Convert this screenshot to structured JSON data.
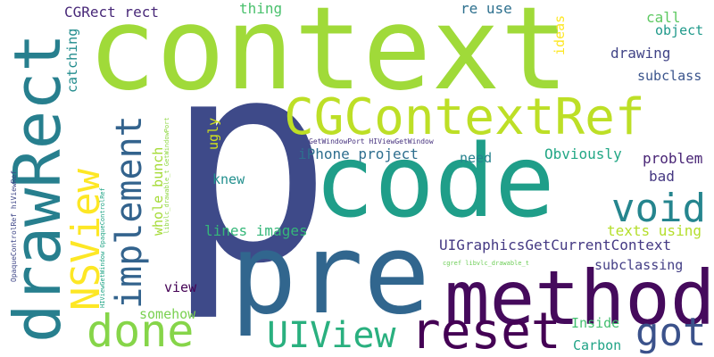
{
  "words": [
    {
      "id": "p",
      "text": "p",
      "color": "#3e4a89"
    },
    {
      "id": "context",
      "text": "context",
      "color": "#a0da39"
    },
    {
      "id": "code",
      "text": "code",
      "color": "#1f9e89"
    },
    {
      "id": "pre",
      "text": "pre",
      "color": "#31668e"
    },
    {
      "id": "method",
      "text": "method",
      "color": "#450a5c"
    },
    {
      "id": "drawRect",
      "text": "drawRect",
      "color": "#277f8e"
    },
    {
      "id": "CGContextRef",
      "text": "CGContextRef",
      "color": "#bddf26"
    },
    {
      "id": "reset",
      "text": "reset",
      "color": "#440154"
    },
    {
      "id": "NSView",
      "text": "NSView",
      "color": "#fde725"
    },
    {
      "id": "done",
      "text": "done",
      "color": "#86d549"
    },
    {
      "id": "UIView",
      "text": "UIView",
      "color": "#2ab07f"
    },
    {
      "id": "void",
      "text": "void",
      "color": "#25858e"
    },
    {
      "id": "implement",
      "text": "implement",
      "color": "#33638d"
    },
    {
      "id": "got",
      "text": "got",
      "color": "#3b528b"
    },
    {
      "id": "CGRect_rect",
      "text": "CGRect rect",
      "color": "#482878"
    },
    {
      "id": "thing",
      "text": "thing",
      "color": "#4ac16d"
    },
    {
      "id": "re_use",
      "text": "re use",
      "color": "#2d708e"
    },
    {
      "id": "ideas",
      "text": "ideas",
      "color": "#fde725"
    },
    {
      "id": "call",
      "text": "call",
      "color": "#5ec962"
    },
    {
      "id": "object",
      "text": "object",
      "color": "#1f998a"
    },
    {
      "id": "catching",
      "text": "catching",
      "color": "#228c8d"
    },
    {
      "id": "drawing",
      "text": "drawing",
      "color": "#414487"
    },
    {
      "id": "subclass",
      "text": "subclass",
      "color": "#3a548c"
    },
    {
      "id": "iPhone_project",
      "text": "iPhone project",
      "color": "#2e6e8e"
    },
    {
      "id": "ugly",
      "text": "ugly",
      "color": "#d0e11c"
    },
    {
      "id": "knew",
      "text": "knew",
      "color": "#218f8d"
    },
    {
      "id": "need",
      "text": "need",
      "color": "#26828e"
    },
    {
      "id": "Obviously",
      "text": "Obviously",
      "color": "#22a785"
    },
    {
      "id": "problem",
      "text": "problem",
      "color": "#482475"
    },
    {
      "id": "bad",
      "text": "bad",
      "color": "#453882"
    },
    {
      "id": "whole_bunch",
      "text": "whole bunch",
      "color": "#a5db36"
    },
    {
      "id": "lines_images",
      "text": "lines images",
      "color": "#35b779"
    },
    {
      "id": "texts_using",
      "text": "texts using",
      "color": "#b5de2b"
    },
    {
      "id": "UIGraphicsGetCurrentContext",
      "text": "UIGraphicsGetCurrentContext",
      "color": "#443983"
    },
    {
      "id": "view",
      "text": "view",
      "color": "#440154"
    },
    {
      "id": "subclassing",
      "text": "subclassing",
      "color": "#433e85"
    },
    {
      "id": "somehow",
      "text": "somehow",
      "color": "#7ad151"
    },
    {
      "id": "Inside",
      "text": "Inside",
      "color": "#44bf70"
    },
    {
      "id": "Carbon",
      "text": "Carbon",
      "color": "#20a386"
    },
    {
      "id": "GetWindowPort_HIViewGetWindow",
      "text": "GetWindowPort HIViewGetWindow",
      "color": "#46327e"
    },
    {
      "id": "libvlc_drawable_t_GetWindowPort",
      "text": "libvlc_drawable_t GetWindowPort",
      "color": "#8fd744"
    },
    {
      "id": "HIViewGetWindow_OpaqueControlRef",
      "text": "HIViewGetWindow OpaqueControlRef",
      "color": "#20a486"
    },
    {
      "id": "OpaqueControlRef_hiViewRef",
      "text": "OpaqueControlRef hiViewRef",
      "color": "#3f4788"
    },
    {
      "id": "cgref_libvlc_drawable_t",
      "text": "cgref libvlc_drawable_t",
      "color": "#6ece58"
    }
  ]
}
